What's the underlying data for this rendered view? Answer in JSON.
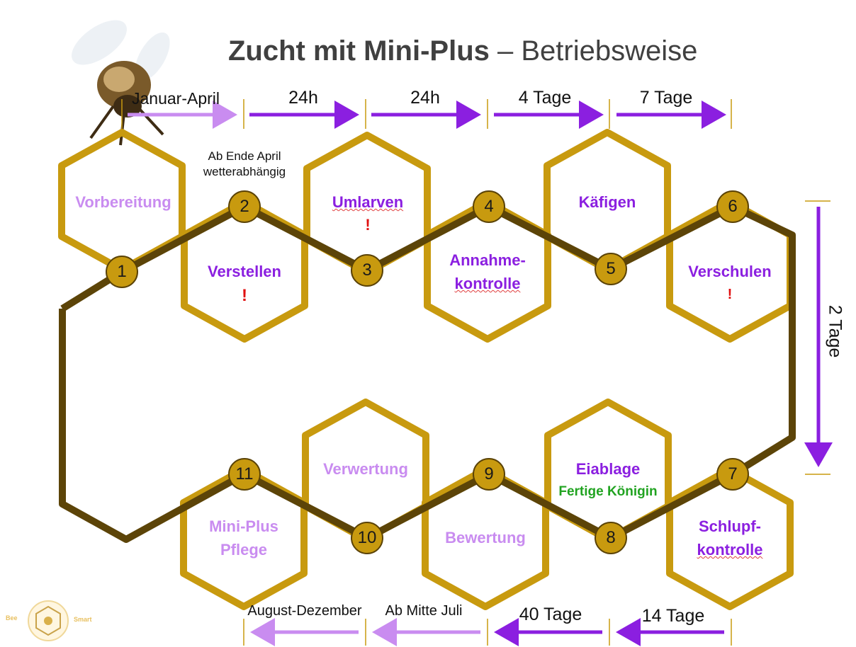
{
  "title": {
    "bold": "Zucht mit Mini-Plus",
    "rest": "– Betriebsweise"
  },
  "top_durations": [
    "Januar-April",
    "24h",
    "24h",
    "4 Tage",
    "7 Tage"
  ],
  "bottom_durations": [
    "August-Dezember",
    "Ab Mitte Juli",
    "40 Tage",
    "14 Tage"
  ],
  "side_duration": "2 Tage",
  "note_start": "Ab Ende April\nwetterabhängig",
  "steps": {
    "vorbereitung": "Vorbereitung",
    "verstellen": "Verstellen",
    "umlarven": "Umlarven",
    "annahme_1": "Annahme-",
    "annahme_2": "kontrolle",
    "kaefigen": "Käfigen",
    "verschulen": "Verschulen",
    "schlupf_1": "Schlupf-",
    "schlupf_2": "kontrolle",
    "eiablage": "Eiablage",
    "fertige_koenigin": "Fertige Königin",
    "bewertung": "Bewertung",
    "verwertung": "Verwertung",
    "pflege_1": "Mini-Plus",
    "pflege_2": "Pflege"
  },
  "exclamation": "!",
  "nodes": [
    "1",
    "2",
    "3",
    "4",
    "5",
    "6",
    "7",
    "8",
    "9",
    "10",
    "11"
  ],
  "logo": {
    "left": "Bee",
    "right": "Smart"
  },
  "colors": {
    "hex_gold": "#c89a0f",
    "path_brown": "#5c4408",
    "arrow_purple": "#8b1fe0",
    "arrow_lilac": "#c98cf0",
    "label_purple": "#8b1fe0",
    "label_lilac": "#c98cf0",
    "warning_red": "#e01010",
    "queen_green": "#21a321"
  }
}
